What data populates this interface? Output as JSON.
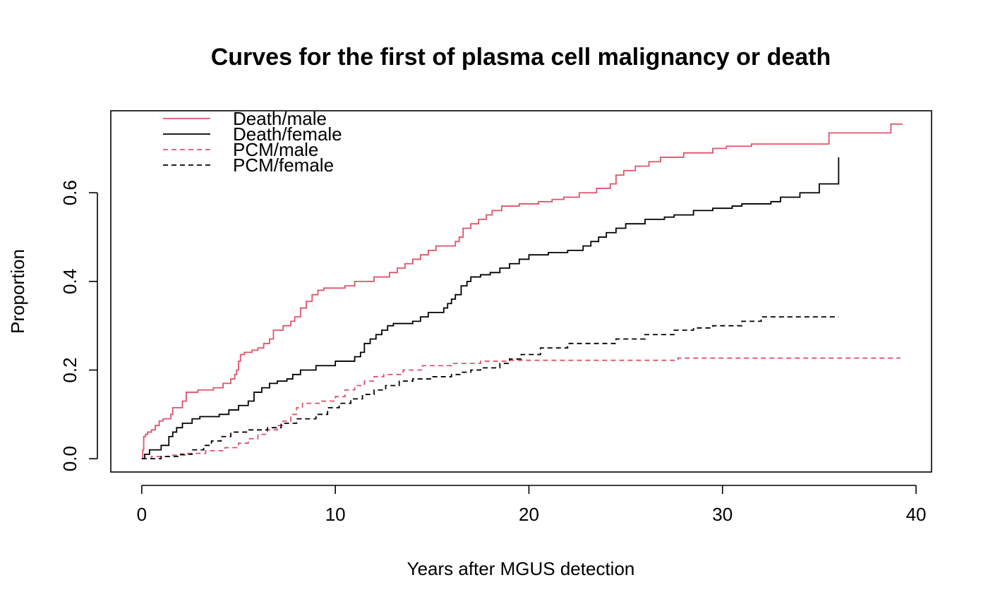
{
  "chart_data": {
    "type": "line",
    "step": true,
    "title": "Curves for the first of plasma cell malignancy or death",
    "xlabel": "Years after MGUS detection",
    "ylabel": "Proportion",
    "xlim": [
      -1.6,
      40.8
    ],
    "ylim": [
      -0.03,
      0.785
    ],
    "xticks": [
      0,
      10,
      20,
      30,
      40
    ],
    "xtick_labels": [
      "0",
      "10",
      "20",
      "30",
      "40"
    ],
    "yticks": [
      0.0,
      0.2,
      0.4,
      0.6
    ],
    "ytick_labels": [
      "0.0",
      "0.2",
      "0.4",
      "0.6"
    ],
    "grid": false,
    "legend_position": "top-left",
    "series": [
      {
        "name": "Death/male",
        "color": "#DF536B",
        "dash": "solid",
        "x": [
          0,
          0.05,
          0.1,
          0.2,
          0.3,
          0.5,
          0.7,
          0.9,
          1.1,
          1.5,
          1.6,
          2.1,
          2.3,
          2.9,
          3.7,
          4.2,
          4.6,
          4.8,
          4.9,
          5.0,
          5.1,
          5.3,
          5.7,
          6.0,
          6.3,
          6.6,
          6.8,
          7.3,
          7.7,
          7.9,
          8.2,
          8.5,
          8.8,
          9.1,
          9.4,
          10.5,
          11.0,
          12.0,
          12.8,
          13.2,
          13.6,
          14.0,
          14.4,
          14.8,
          15.2,
          16.2,
          16.4,
          16.6,
          17.0,
          17.4,
          17.8,
          18.1,
          18.6,
          19.5,
          20.5,
          21.2,
          21.8,
          22.6,
          23.5,
          24.2,
          24.5,
          24.9,
          25.5,
          26.2,
          26.8,
          28.0,
          29.5,
          30.2,
          31.5,
          35.5,
          38.7,
          39.3
        ],
        "y": [
          0,
          0.02,
          0.05,
          0.055,
          0.06,
          0.065,
          0.075,
          0.085,
          0.09,
          0.1,
          0.115,
          0.13,
          0.15,
          0.155,
          0.16,
          0.17,
          0.18,
          0.19,
          0.2,
          0.22,
          0.235,
          0.24,
          0.245,
          0.25,
          0.26,
          0.27,
          0.29,
          0.3,
          0.31,
          0.32,
          0.34,
          0.355,
          0.37,
          0.38,
          0.385,
          0.39,
          0.4,
          0.41,
          0.42,
          0.43,
          0.44,
          0.45,
          0.46,
          0.47,
          0.48,
          0.49,
          0.5,
          0.52,
          0.53,
          0.54,
          0.55,
          0.56,
          0.57,
          0.575,
          0.58,
          0.585,
          0.59,
          0.6,
          0.61,
          0.62,
          0.64,
          0.65,
          0.66,
          0.67,
          0.68,
          0.69,
          0.7,
          0.705,
          0.71,
          0.735,
          0.755,
          0.755
        ]
      },
      {
        "name": "Death/female",
        "color": "#000000",
        "dash": "solid",
        "x": [
          0,
          0.15,
          0.4,
          1.0,
          1.4,
          1.6,
          1.8,
          2.1,
          2.6,
          3.0,
          4.0,
          4.5,
          5.0,
          5.5,
          5.8,
          6.2,
          6.6,
          7.0,
          7.5,
          7.8,
          8.2,
          9.0,
          10.0,
          11.0,
          11.3,
          11.5,
          11.8,
          12.1,
          12.4,
          12.7,
          13.0,
          14.0,
          14.4,
          14.8,
          15.6,
          15.8,
          16.0,
          16.2,
          16.5,
          16.8,
          17.0,
          17.5,
          18.0,
          18.5,
          19.0,
          19.5,
          20.0,
          21.0,
          22.0,
          22.8,
          23.2,
          23.6,
          24.0,
          24.5,
          25.0,
          26.0,
          27.0,
          27.5,
          28.5,
          29.5,
          30.5,
          31.0,
          32.5,
          33.0,
          34.0,
          35.0,
          36.0
        ],
        "y": [
          0,
          0.01,
          0.02,
          0.03,
          0.05,
          0.06,
          0.07,
          0.08,
          0.09,
          0.095,
          0.1,
          0.11,
          0.12,
          0.13,
          0.15,
          0.16,
          0.17,
          0.175,
          0.18,
          0.19,
          0.2,
          0.21,
          0.22,
          0.23,
          0.24,
          0.26,
          0.27,
          0.28,
          0.29,
          0.3,
          0.305,
          0.31,
          0.32,
          0.33,
          0.34,
          0.35,
          0.36,
          0.37,
          0.39,
          0.4,
          0.41,
          0.415,
          0.42,
          0.43,
          0.44,
          0.45,
          0.46,
          0.465,
          0.47,
          0.48,
          0.49,
          0.5,
          0.51,
          0.52,
          0.53,
          0.54,
          0.545,
          0.55,
          0.56,
          0.565,
          0.57,
          0.575,
          0.58,
          0.59,
          0.6,
          0.62,
          0.68
        ]
      },
      {
        "name": "PCM/male",
        "color": "#DF536B",
        "dash": "dashed",
        "x": [
          0,
          0.5,
          1.5,
          2.3,
          3.3,
          4.3,
          5.0,
          5.5,
          6.0,
          6.5,
          7.0,
          7.3,
          7.7,
          8.0,
          8.3,
          9.3,
          10.0,
          10.5,
          11.0,
          11.5,
          12.0,
          12.5,
          13.5,
          14.5,
          16.0,
          17.5,
          19.0,
          27.7,
          39.2
        ],
        "y": [
          0,
          0.005,
          0.008,
          0.012,
          0.018,
          0.025,
          0.035,
          0.045,
          0.055,
          0.065,
          0.075,
          0.085,
          0.1,
          0.115,
          0.125,
          0.13,
          0.14,
          0.155,
          0.165,
          0.175,
          0.185,
          0.19,
          0.2,
          0.21,
          0.215,
          0.22,
          0.222,
          0.227,
          0.227
        ]
      },
      {
        "name": "PCM/female",
        "color": "#000000",
        "dash": "dashed",
        "x": [
          0,
          1.0,
          2.0,
          2.6,
          3.2,
          3.6,
          4.1,
          4.6,
          5.5,
          6.5,
          7.2,
          8.0,
          9.0,
          9.6,
          10.2,
          10.8,
          11.4,
          12.0,
          12.6,
          13.3,
          14.0,
          15.0,
          16.0,
          16.5,
          17.0,
          17.5,
          18.5,
          19.0,
          19.6,
          20.6,
          22.0,
          24.5,
          26.0,
          27.5,
          28.5,
          29.5,
          31.0,
          32.0,
          36.0
        ],
        "y": [
          0,
          0.005,
          0.01,
          0.02,
          0.03,
          0.04,
          0.05,
          0.06,
          0.065,
          0.07,
          0.08,
          0.09,
          0.1,
          0.115,
          0.125,
          0.135,
          0.145,
          0.155,
          0.165,
          0.175,
          0.18,
          0.185,
          0.19,
          0.195,
          0.2,
          0.205,
          0.215,
          0.225,
          0.235,
          0.25,
          0.26,
          0.27,
          0.28,
          0.29,
          0.295,
          0.3,
          0.31,
          0.32,
          0.32
        ]
      }
    ]
  }
}
